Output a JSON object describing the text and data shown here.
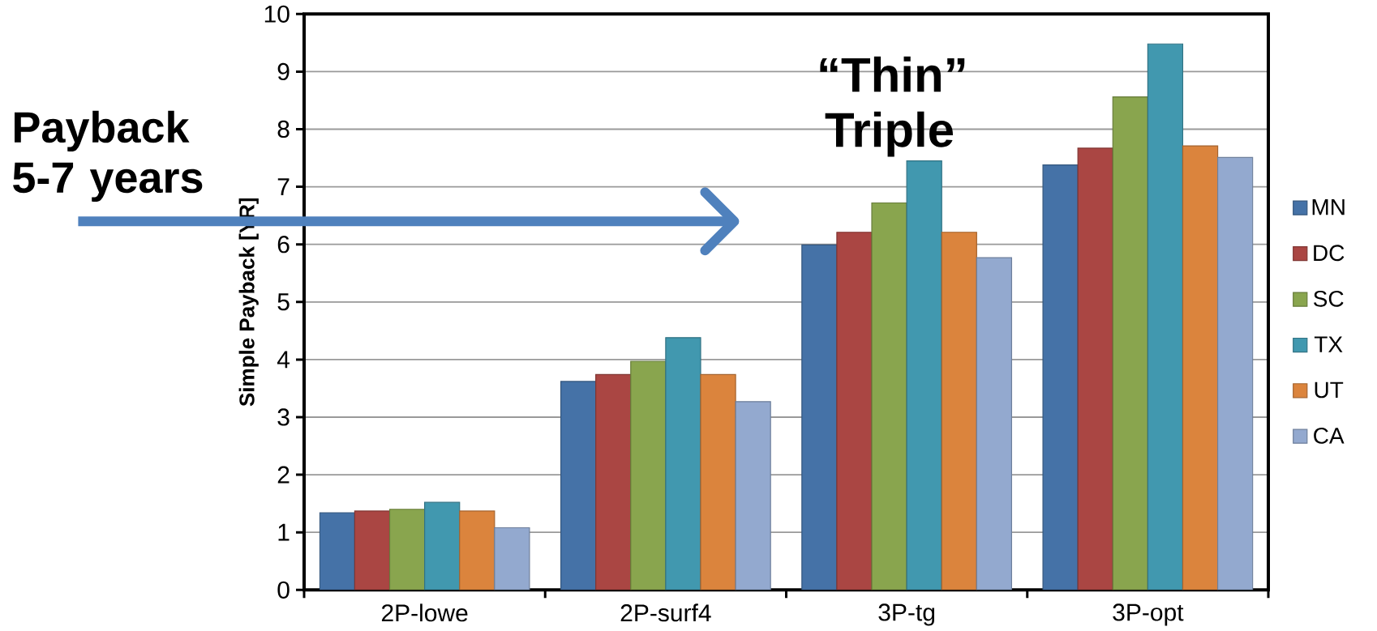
{
  "chart_data": {
    "type": "bar",
    "ylabel": "Simple Payback [YR]",
    "categories": [
      "2P-lowe",
      "2P-surf4",
      "3P-tg",
      "3P-opt"
    ],
    "series": [
      {
        "name": "MN",
        "color": "#4572a7",
        "values": [
          1.34,
          3.62,
          5.99,
          7.38
        ]
      },
      {
        "name": "DC",
        "color": "#aa4643",
        "values": [
          1.37,
          3.74,
          6.21,
          7.67
        ]
      },
      {
        "name": "SC",
        "color": "#89a54e",
        "values": [
          1.4,
          3.97,
          6.72,
          8.56
        ]
      },
      {
        "name": "TX",
        "color": "#4198af",
        "values": [
          1.52,
          4.38,
          7.45,
          9.48
        ]
      },
      {
        "name": "UT",
        "color": "#db843d",
        "values": [
          1.37,
          3.74,
          6.21,
          7.71
        ]
      },
      {
        "name": "CA",
        "color": "#93a9cf",
        "values": [
          1.08,
          3.27,
          5.77,
          7.51
        ]
      }
    ],
    "ylim": [
      0,
      10
    ],
    "yticks": [
      0,
      1,
      2,
      3,
      4,
      5,
      6,
      7,
      8,
      9,
      10
    ],
    "grid": "y",
    "legend": "right",
    "annotations": [
      "Payback 5-7 years",
      "“Thin” Triple"
    ]
  }
}
